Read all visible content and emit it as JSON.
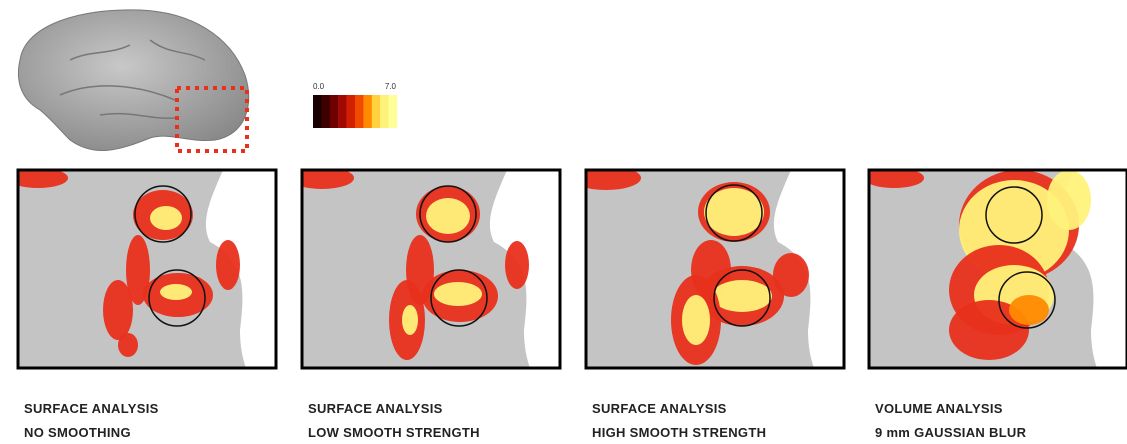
{
  "colorbar": {
    "min_label": "0.0",
    "max_label": "7.0"
  },
  "panels": [
    {
      "line1": "SURFACE ANALYSIS",
      "line2": "NO SMOOTHING"
    },
    {
      "line1": "SURFACE ANALYSIS",
      "line2": "LOW SMOOTH STRENGTH"
    },
    {
      "line1": "SURFACE ANALYSIS",
      "line2": "HIGH SMOOTH STRENGTH"
    },
    {
      "line1": "VOLUME ANALYSIS",
      "line2": "9 mm GAUSSIAN BLUR"
    }
  ]
}
